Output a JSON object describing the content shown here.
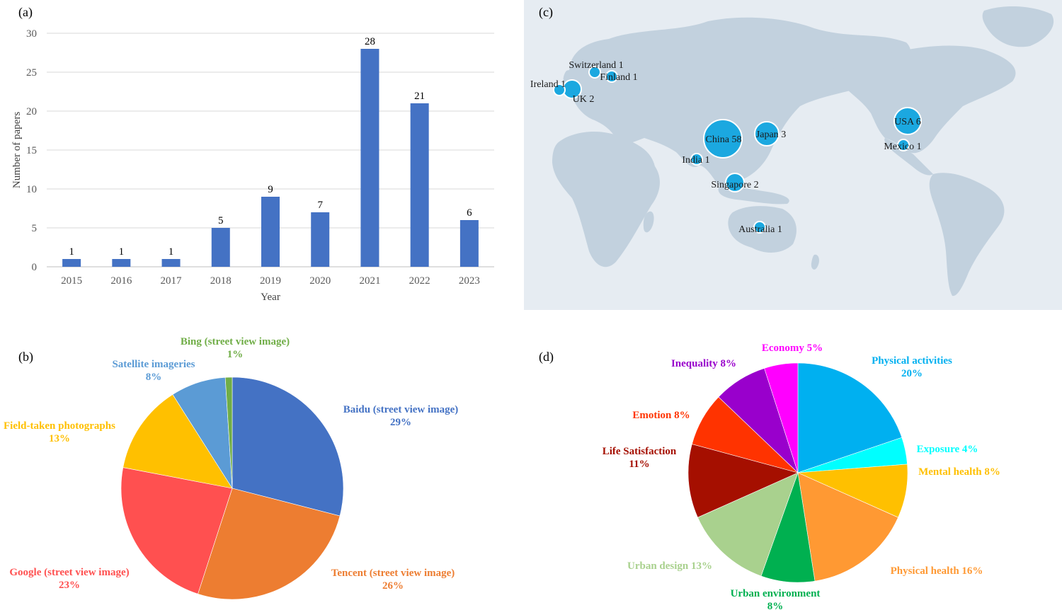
{
  "colors": {
    "bar": "#4472c4",
    "grid": "#d9d9d9",
    "map_bg": "#e6ecf2",
    "land": "#c2d1de",
    "bubble": "#1ba8e0"
  },
  "panels": {
    "a": "(a)",
    "b": "(b)",
    "c": "(c)",
    "d": "(d)"
  },
  "chart_data": [
    {
      "id": "a",
      "type": "bar",
      "title": "",
      "xlabel": "Year",
      "ylabel": "Number of papers",
      "ylim": [
        0,
        30
      ],
      "yticks": [
        0,
        5,
        10,
        15,
        20,
        25,
        30
      ],
      "grid": true,
      "categories": [
        "2015",
        "2016",
        "2017",
        "2018",
        "2019",
        "2020",
        "2021",
        "2022",
        "2023"
      ],
      "values": [
        1,
        1,
        1,
        5,
        9,
        7,
        28,
        21,
        6
      ]
    },
    {
      "id": "b",
      "type": "pie",
      "slices": [
        {
          "name": "Baidu (street view image)",
          "pct_label": "29%",
          "value": 29,
          "color": "#4472c4"
        },
        {
          "name": "Tencent (street view image)",
          "pct_label": "26%",
          "value": 26,
          "color": "#ed7d31"
        },
        {
          "name": "Google (street view image)",
          "pct_label": "23%",
          "value": 23,
          "color": "#ff5050"
        },
        {
          "name": "Field-taken photographs",
          "pct_label": "13%",
          "value": 13,
          "color": "#ffc000"
        },
        {
          "name": "Satellite imageries",
          "pct_label": "8%",
          "value": 8,
          "color": "#5b9bd5"
        },
        {
          "name": "Bing (street view image)",
          "pct_label": "1%",
          "value": 1,
          "color": "#70ad47"
        }
      ]
    },
    {
      "id": "c",
      "type": "bubble-map",
      "points": [
        {
          "name": "China",
          "value": 58
        },
        {
          "name": "USA",
          "value": 6
        },
        {
          "name": "Japan",
          "value": 3
        },
        {
          "name": "UK",
          "value": 2
        },
        {
          "name": "Singapore",
          "value": 2
        },
        {
          "name": "Switzerland",
          "value": 1
        },
        {
          "name": "Finland",
          "value": 1
        },
        {
          "name": "Ireland",
          "value": 1
        },
        {
          "name": "India",
          "value": 1
        },
        {
          "name": "Mexico",
          "value": 1
        },
        {
          "name": "Australia",
          "value": 1
        }
      ]
    },
    {
      "id": "d",
      "type": "pie",
      "slices": [
        {
          "name": "Physical activities",
          "pct_label": "20%",
          "value": 20,
          "color": "#00b0f0"
        },
        {
          "name": "Exposure",
          "pct_label": "4%",
          "value": 4,
          "color": "#00ffff"
        },
        {
          "name": "Mental health",
          "pct_label": "8%",
          "value": 8,
          "color": "#ffc000"
        },
        {
          "name": "Physical health",
          "pct_label": "16%",
          "value": 16,
          "color": "#ff9933"
        },
        {
          "name": "Urban environment",
          "pct_label": "8%",
          "value": 8,
          "color": "#00b050"
        },
        {
          "name": "Urban design",
          "pct_label": "13%",
          "value": 13,
          "color": "#a9d18e"
        },
        {
          "name": "Life Satisfaction",
          "pct_label": "11%",
          "value": 11,
          "color": "#a50f00"
        },
        {
          "name": "Emotion",
          "pct_label": "8%",
          "value": 8,
          "color": "#ff3300"
        },
        {
          "name": "Inequality",
          "pct_label": "8%",
          "value": 8,
          "color": "#9900cc"
        },
        {
          "name": "Economy",
          "pct_label": "5%",
          "value": 5,
          "color": "#ff00ff"
        }
      ]
    }
  ]
}
